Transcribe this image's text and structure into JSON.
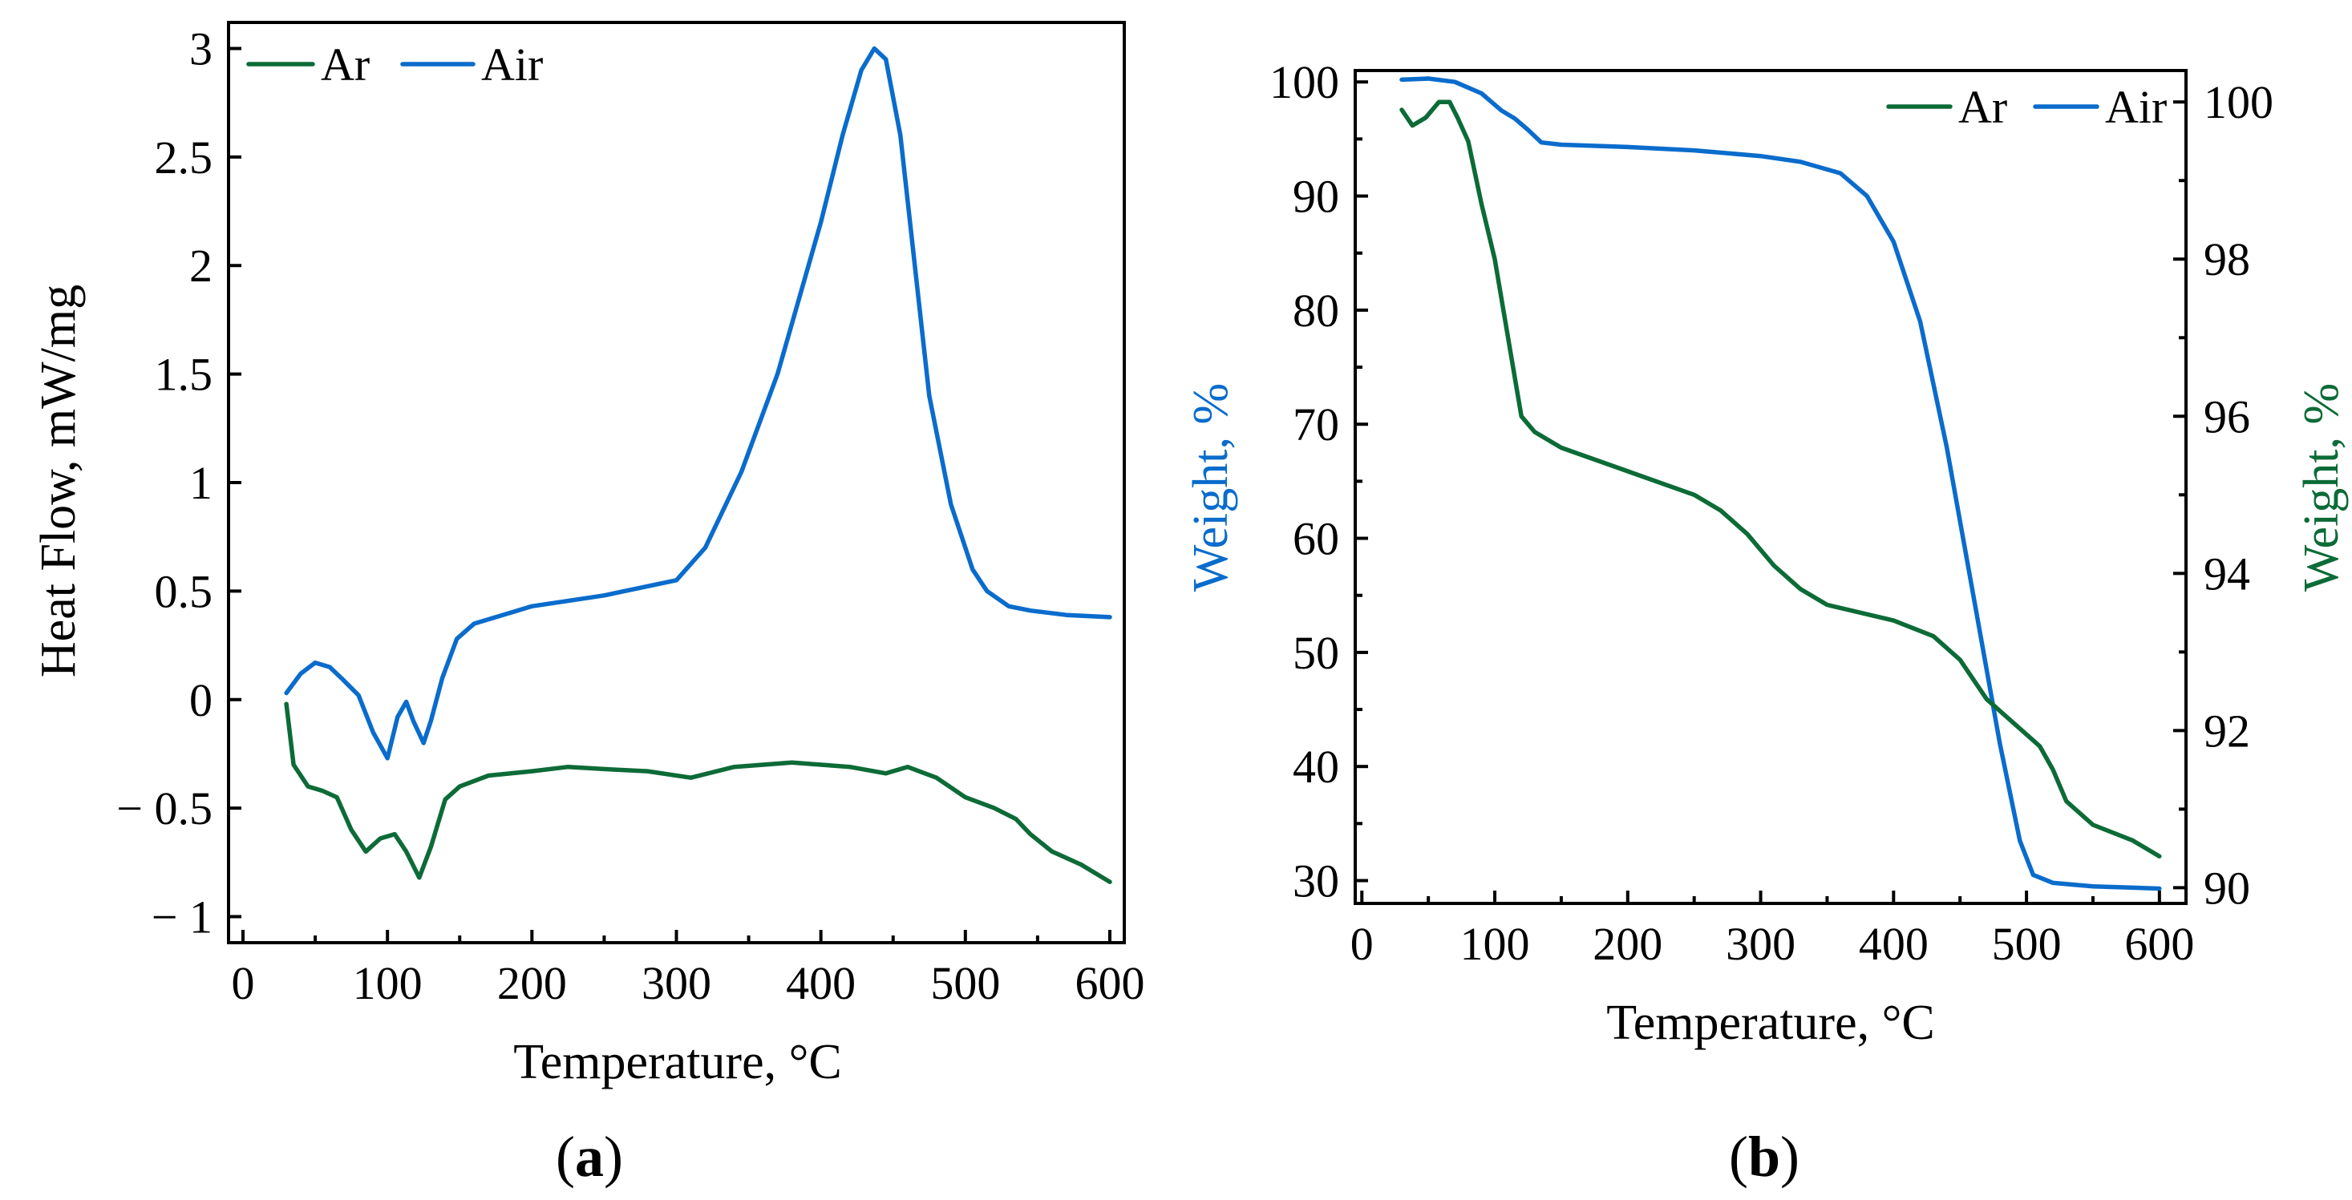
{
  "colors": {
    "ar": "#0c6b37",
    "air": "#0a6ccc",
    "axis": "#000000"
  },
  "chart_data": [
    {
      "id": "a",
      "type": "line",
      "panel_label": "a",
      "title": "",
      "xlabel": "Temperature, °C",
      "ylabel": "Heat Flow, mW/mg",
      "xlim": [
        -10,
        610
      ],
      "ylim": [
        -1.12,
        3.12
      ],
      "xticks": [
        0,
        100,
        200,
        300,
        400,
        500,
        600
      ],
      "xtick_labels": [
        "0",
        "100",
        "200",
        "300",
        "400",
        "500",
        "600"
      ],
      "yticks": [
        -1,
        -0.5,
        0,
        0.5,
        1,
        1.5,
        2,
        2.5,
        3
      ],
      "ytick_labels": [
        "− 1",
        "− 0.5",
        "0",
        "0.5",
        "1",
        "1.5",
        "2",
        "2.5",
        "3"
      ],
      "legend": {
        "position": "top-left",
        "entries": [
          "Ar",
          "Air"
        ]
      },
      "series": [
        {
          "name": "Ar",
          "color": "#0c6b37",
          "x": [
            30,
            35,
            45,
            55,
            65,
            75,
            85,
            95,
            105,
            113,
            122,
            130,
            140,
            150,
            170,
            200,
            225,
            250,
            280,
            310,
            340,
            380,
            420,
            445,
            460,
            480,
            500,
            520,
            535,
            545,
            560,
            580,
            600
          ],
          "y": [
            -0.02,
            -0.3,
            -0.4,
            -0.42,
            -0.45,
            -0.6,
            -0.7,
            -0.64,
            -0.62,
            -0.7,
            -0.82,
            -0.68,
            -0.46,
            -0.4,
            -0.35,
            -0.33,
            -0.31,
            -0.32,
            -0.33,
            -0.36,
            -0.31,
            -0.29,
            -0.31,
            -0.34,
            -0.31,
            -0.36,
            -0.45,
            -0.5,
            -0.55,
            -0.62,
            -0.7,
            -0.76,
            -0.84
          ]
        },
        {
          "name": "Air",
          "color": "#0a6ccc",
          "x": [
            30,
            40,
            50,
            60,
            68,
            74,
            80,
            90,
            100,
            107,
            113,
            118,
            125,
            130,
            138,
            148,
            160,
            200,
            250,
            300,
            320,
            345,
            370,
            400,
            415,
            428,
            437,
            445,
            455,
            465,
            475,
            490,
            505,
            515,
            530,
            545,
            570,
            600
          ],
          "y": [
            0.03,
            0.12,
            0.17,
            0.15,
            0.1,
            0.06,
            0.02,
            -0.15,
            -0.27,
            -0.08,
            -0.01,
            -0.1,
            -0.2,
            -0.1,
            0.1,
            0.28,
            0.35,
            0.43,
            0.48,
            0.55,
            0.7,
            1.05,
            1.5,
            2.2,
            2.6,
            2.9,
            3.0,
            2.95,
            2.6,
            2.0,
            1.4,
            0.9,
            0.6,
            0.5,
            0.43,
            0.41,
            0.39,
            0.38
          ]
        }
      ]
    },
    {
      "id": "b",
      "type": "line",
      "panel_label": "b",
      "title": "",
      "xlabel": "Temperature, °C",
      "ylabel": "Weight, %",
      "ylabel_right": "Weight, %",
      "xlim": [
        -5,
        620
      ],
      "ylim": [
        28,
        101
      ],
      "ylim_right": [
        89.8,
        100.4
      ],
      "xticks": [
        0,
        100,
        200,
        300,
        400,
        500,
        600
      ],
      "xtick_labels": [
        "0",
        "100",
        "200",
        "300",
        "400",
        "500",
        "600"
      ],
      "yticks": [
        30,
        40,
        50,
        60,
        70,
        80,
        90,
        100
      ],
      "ytick_labels": [
        "30",
        "40",
        "50",
        "60",
        "70",
        "80",
        "90",
        "100"
      ],
      "yticks_right": [
        90,
        92,
        94,
        96,
        98,
        100
      ],
      "ytick_labels_right": [
        "90",
        "92",
        "94",
        "96",
        "98",
        "100"
      ],
      "legend": {
        "position": "top-right",
        "entries": [
          "Ar",
          "Air"
        ]
      },
      "series": [
        {
          "name": "Air",
          "color": "#0a6ccc",
          "axis": "left",
          "x": [
            30,
            50,
            70,
            90,
            105,
            115,
            125,
            135,
            150,
            200,
            250,
            300,
            330,
            360,
            380,
            400,
            420,
            440,
            460,
            480,
            495,
            505,
            520,
            550,
            600
          ],
          "y": [
            100.2,
            100.3,
            100,
            99,
            97.5,
            96.8,
            95.8,
            94.7,
            94.5,
            94.3,
            94.0,
            93.5,
            93.0,
            92.0,
            90.0,
            86.0,
            79.0,
            68.0,
            55.0,
            42.0,
            33.5,
            30.5,
            29.8,
            29.5,
            29.3
          ]
        },
        {
          "name": "Ar",
          "color": "#0c6b37",
          "axis": "right",
          "x": [
            30,
            38,
            48,
            58,
            66,
            72,
            80,
            90,
            100,
            110,
            120,
            130,
            150,
            200,
            250,
            270,
            290,
            310,
            330,
            350,
            400,
            430,
            450,
            470,
            490,
            510,
            520,
            530,
            550,
            580,
            600
          ],
          "y": [
            99.9,
            99.7,
            99.8,
            100.0,
            100.0,
            99.8,
            99.5,
            98.7,
            98.0,
            97.0,
            96.0,
            95.8,
            95.6,
            95.3,
            95.0,
            94.8,
            94.5,
            94.1,
            93.8,
            93.6,
            93.4,
            93.2,
            92.9,
            92.4,
            92.1,
            91.8,
            91.5,
            91.1,
            90.8,
            90.6,
            90.4
          ]
        }
      ]
    }
  ]
}
